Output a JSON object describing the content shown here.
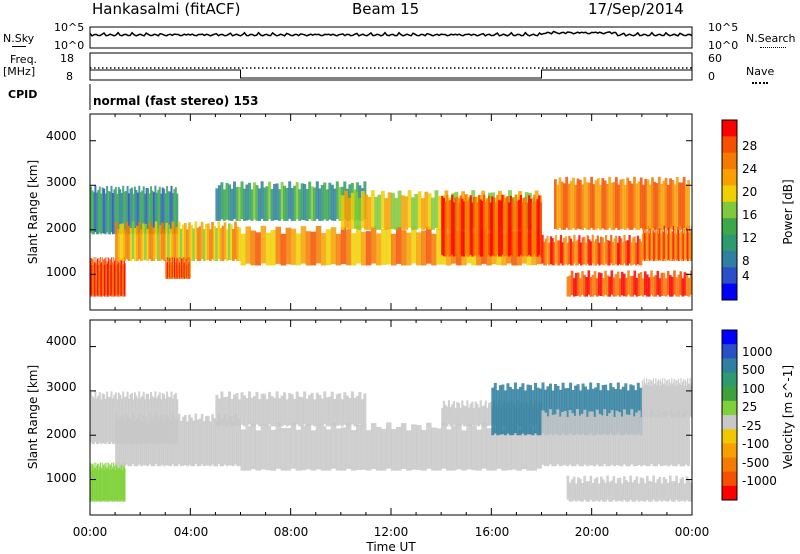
{
  "header": {
    "station": "Hankasalmi (fitACF)",
    "beam": "Beam 15",
    "date": "17/Sep/2014"
  },
  "top_panels": {
    "nsky_label": "N.Sky",
    "nsky_ticks": [
      "10^5",
      "10^0"
    ],
    "nsearch_label": "N.Search",
    "nsearch_ticks": [
      "10^5",
      "10^0"
    ],
    "freq_label": "Freq.",
    "freq_unit": "[MHz]",
    "freq_ticks": [
      "18",
      "8"
    ],
    "nave_label": "Nave",
    "nave_ticks": [
      "60",
      "0"
    ],
    "cpid_label": "CPID",
    "cpid_text": "normal (fast stereo) 153"
  },
  "colors": {
    "power": [
      "#0000ff",
      "#2a4fc8",
      "#2f7fa0",
      "#2e9a70",
      "#3ca84a",
      "#7fc93a",
      "#f0d000",
      "#f7a000",
      "#f47a00",
      "#f45000",
      "#ff0000"
    ],
    "velocity": [
      "#0000ff",
      "#2a4fc8",
      "#2f7fa0",
      "#2e9a70",
      "#3fa040",
      "#7fd13a",
      "#c8c8c8",
      "#f0c800",
      "#f7a000",
      "#f47a00",
      "#f45000",
      "#ff0000"
    ],
    "ground_scatter": "#c8c8c8"
  },
  "chart_data": [
    {
      "type": "heatmap",
      "panel": "power",
      "ylabel": "Slant Range [km]",
      "ylim": [
        200,
        4600
      ],
      "y_ticks": [
        "1000",
        "2000",
        "3000",
        "4000"
      ],
      "xlim": [
        "00:00",
        "24:00"
      ],
      "colorbar_label": "Power [dB]",
      "colorbar_ticks": [
        "4",
        "8",
        "12",
        "16",
        "20",
        "24",
        "28"
      ],
      "colorbar_range": [
        0,
        30
      ],
      "regions": [
        {
          "t0": 0,
          "t1": 1.4,
          "r0": 500,
          "r1": 1300,
          "value": 27
        },
        {
          "t0": 0,
          "t1": 3.5,
          "r0": 1900,
          "r1": 2900,
          "value": 8
        },
        {
          "t0": 1.0,
          "t1": 6.0,
          "r0": 1300,
          "r1": 2100,
          "value": 20
        },
        {
          "t0": 3.0,
          "t1": 4.0,
          "r0": 900,
          "r1": 1300,
          "value": 26
        },
        {
          "t0": 5.0,
          "t1": 11.0,
          "r0": 2200,
          "r1": 3000,
          "value": 10
        },
        {
          "t0": 6.0,
          "t1": 18.0,
          "r0": 1200,
          "r1": 2000,
          "value": 22
        },
        {
          "t0": 10.0,
          "t1": 18.0,
          "r0": 2000,
          "r1": 2800,
          "value": 18
        },
        {
          "t0": 14.0,
          "t1": 18.0,
          "r0": 1400,
          "r1": 2700,
          "value": 27
        },
        {
          "t0": 18.0,
          "t1": 22.0,
          "r0": 1200,
          "r1": 1800,
          "value": 26
        },
        {
          "t0": 18.5,
          "t1": 23.9,
          "r0": 2000,
          "r1": 3100,
          "value": 24
        },
        {
          "t0": 19.0,
          "t1": 24.0,
          "r0": 500,
          "r1": 1000,
          "value": 27
        },
        {
          "t0": 22.0,
          "t1": 24.0,
          "r0": 1300,
          "r1": 2000,
          "value": 25
        }
      ]
    },
    {
      "type": "heatmap",
      "panel": "velocity",
      "ylabel": "Slant Range [km]",
      "ylim": [
        200,
        4600
      ],
      "y_ticks": [
        "1000",
        "2000",
        "3000",
        "4000"
      ],
      "xlim": [
        "00:00",
        "24:00"
      ],
      "x_ticks": [
        "00:00",
        "04:00",
        "08:00",
        "12:00",
        "16:00",
        "20:00",
        "00:00"
      ],
      "xlabel": "Time UT",
      "colorbar_label": "Velocity [m s^-1]",
      "colorbar_ticks": [
        "1000",
        "500",
        "100",
        "25",
        "-25",
        "-100",
        "-500",
        "-1000"
      ],
      "regions": [
        {
          "t0": 0,
          "t1": 1.4,
          "r0": 500,
          "r1": 1300,
          "value": -60
        },
        {
          "t0": 0,
          "t1": 3.5,
          "r0": 1800,
          "r1": 2900,
          "value": -200
        },
        {
          "t0": 1.0,
          "t1": 6.0,
          "r0": 1300,
          "r1": 2400,
          "value": 0
        },
        {
          "t0": 5.0,
          "t1": 11.0,
          "r0": 2200,
          "r1": 2900,
          "value": 0
        },
        {
          "t0": 6.0,
          "t1": 18.0,
          "r0": 1200,
          "r1": 2200,
          "value": 0
        },
        {
          "t0": 14.0,
          "t1": 18.0,
          "r0": 2200,
          "r1": 2700,
          "value": 0
        },
        {
          "t0": 16.0,
          "t1": 22.0,
          "r0": 2000,
          "r1": 3100,
          "value": 200
        },
        {
          "t0": 18.0,
          "t1": 23.9,
          "r0": 1300,
          "r1": 2500,
          "value": 0
        },
        {
          "t0": 19.0,
          "t1": 24.0,
          "r0": 500,
          "r1": 1000,
          "value": -200
        },
        {
          "t0": 22.0,
          "t1": 24.0,
          "r0": 2400,
          "r1": 3200,
          "value": -300
        }
      ]
    }
  ]
}
